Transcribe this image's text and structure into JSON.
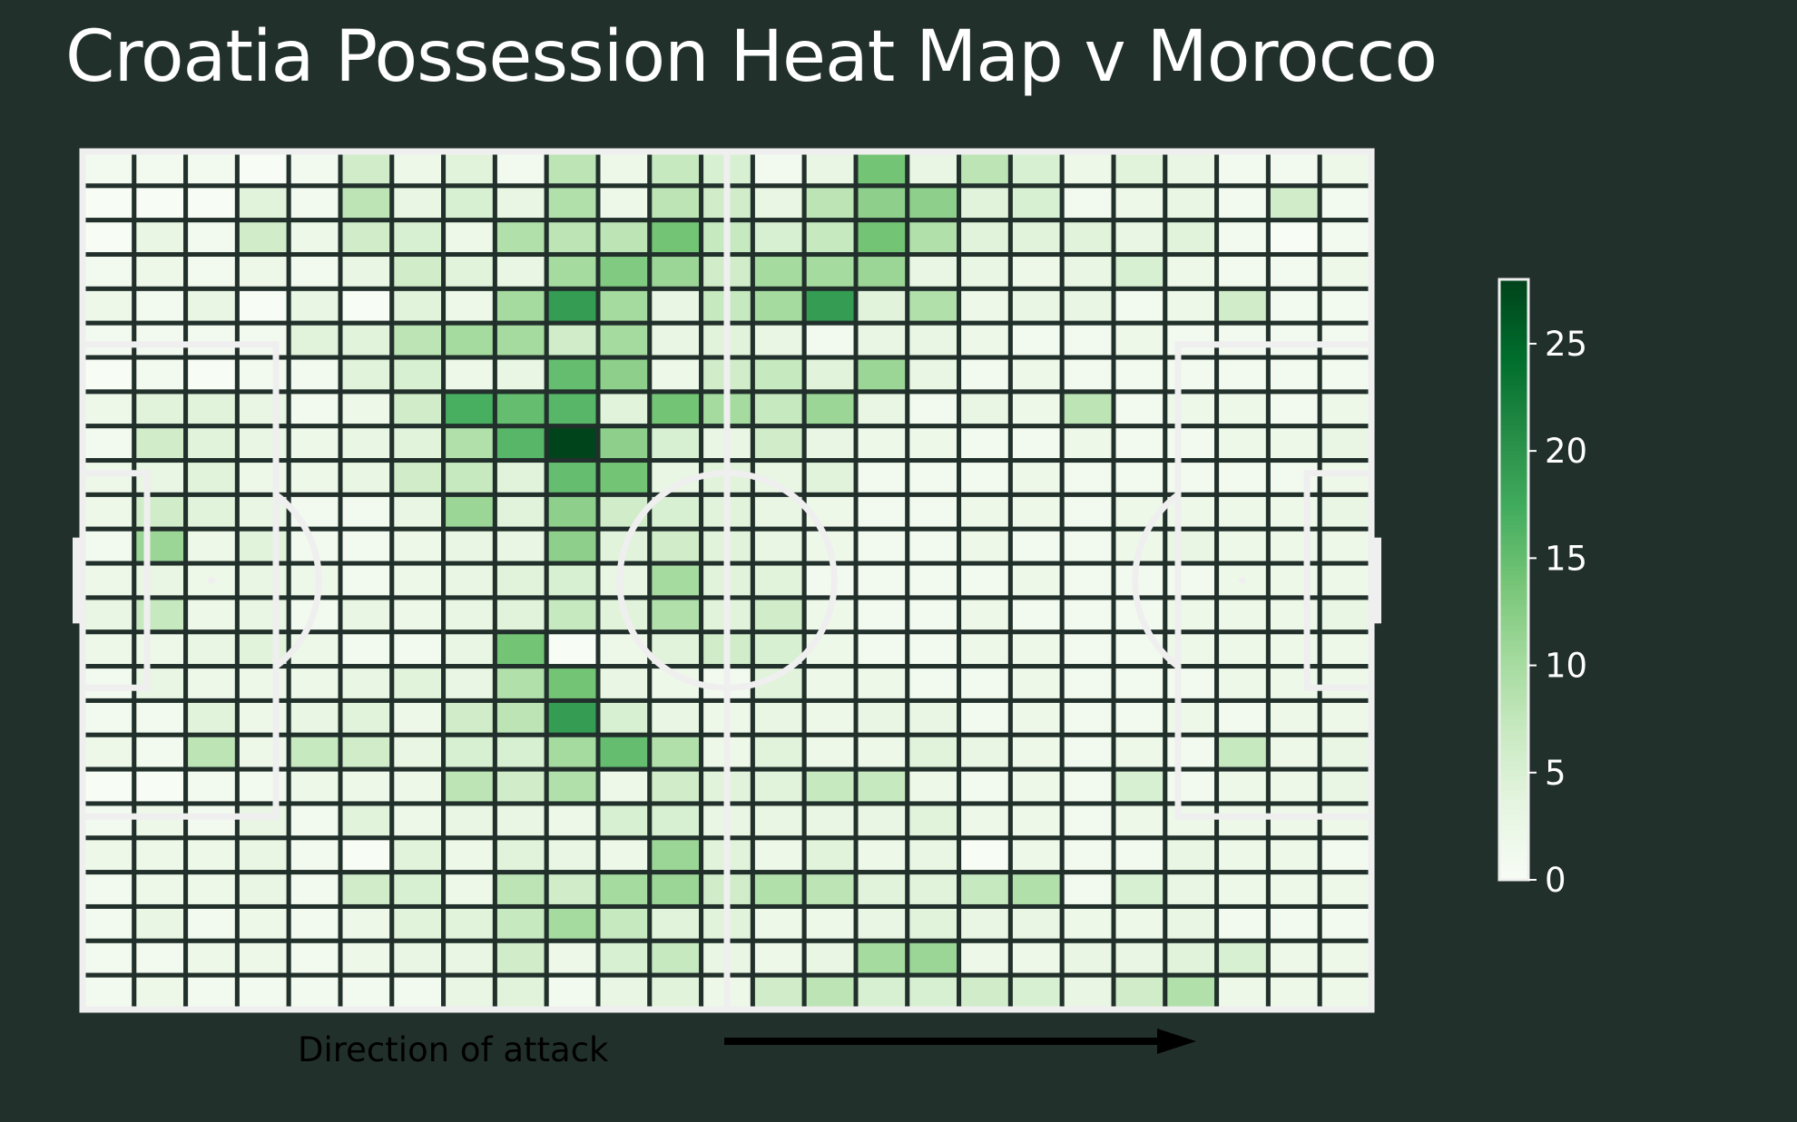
{
  "title": "Croatia Possession Heat Map v Morocco",
  "direction_label": "Direction of attack",
  "colors": {
    "background": "#22302c",
    "pitch_lines": "#efefef",
    "grid_lines": "#22302c",
    "arrow": "#000000",
    "colormap": [
      "#f7fcf5",
      "#e5f5e0",
      "#c7e9c0",
      "#a1d99b",
      "#74c476",
      "#41ab5d",
      "#238b45",
      "#006d2c",
      "#00441b"
    ]
  },
  "chart_data": {
    "type": "heatmap",
    "title": "Croatia Possession Heat Map v Morocco",
    "colorbar": {
      "min": 0,
      "max": 28,
      "ticks": [
        0,
        5,
        10,
        15,
        20,
        25
      ]
    },
    "grid": {
      "columns": 25,
      "rows": 25
    },
    "values": [
      [
        1,
        1,
        1,
        0,
        1,
        6,
        2,
        4,
        1,
        8,
        2,
        7,
        5,
        1,
        3,
        14,
        3,
        8,
        5,
        2,
        4,
        3,
        1,
        1,
        2
      ],
      [
        0,
        0,
        0,
        4,
        1,
        8,
        3,
        5,
        3,
        9,
        2,
        8,
        6,
        3,
        8,
        12,
        12,
        4,
        5,
        1,
        2,
        3,
        1,
        6,
        1
      ],
      [
        0,
        3,
        1,
        6,
        2,
        6,
        5,
        2,
        9,
        8,
        8,
        14,
        7,
        5,
        7,
        14,
        9,
        4,
        4,
        4,
        3,
        4,
        1,
        0,
        1
      ],
      [
        1,
        2,
        1,
        2,
        1,
        3,
        6,
        4,
        3,
        10,
        13,
        11,
        6,
        10,
        10,
        11,
        3,
        3,
        2,
        3,
        5,
        2,
        1,
        1,
        2
      ],
      [
        2,
        1,
        3,
        0,
        3,
        0,
        4,
        2,
        10,
        19,
        10,
        3,
        7,
        10,
        19,
        4,
        9,
        2,
        3,
        3,
        1,
        2,
        6,
        1,
        1
      ],
      [
        1,
        1,
        1,
        1,
        4,
        4,
        8,
        10,
        10,
        6,
        10,
        3,
        4,
        3,
        1,
        3,
        3,
        2,
        1,
        1,
        2,
        1,
        1,
        1,
        1
      ],
      [
        0,
        1,
        0,
        1,
        1,
        4,
        5,
        2,
        3,
        15,
        12,
        2,
        6,
        7,
        4,
        11,
        3,
        1,
        2,
        1,
        1,
        1,
        1,
        1,
        1
      ],
      [
        2,
        4,
        4,
        3,
        1,
        2,
        6,
        17,
        15,
        16,
        4,
        14,
        10,
        7,
        11,
        3,
        1,
        3,
        2,
        8,
        1,
        2,
        2,
        1,
        2
      ],
      [
        1,
        6,
        4,
        3,
        2,
        3,
        4,
        9,
        16,
        28,
        12,
        5,
        3,
        6,
        3,
        2,
        2,
        1,
        1,
        2,
        1,
        1,
        2,
        2,
        3
      ],
      [
        2,
        3,
        4,
        2,
        2,
        3,
        6,
        7,
        4,
        15,
        14,
        3,
        4,
        3,
        4,
        1,
        1,
        1,
        2,
        1,
        1,
        1,
        1,
        1,
        2
      ],
      [
        2,
        6,
        4,
        3,
        1,
        1,
        3,
        11,
        4,
        12,
        6,
        5,
        4,
        3,
        2,
        1,
        1,
        2,
        2,
        1,
        2,
        2,
        2,
        2,
        3
      ],
      [
        1,
        11,
        2,
        4,
        1,
        1,
        2,
        3,
        3,
        12,
        4,
        6,
        4,
        3,
        2,
        1,
        1,
        2,
        1,
        1,
        2,
        3,
        2,
        2,
        2
      ],
      [
        2,
        3,
        2,
        3,
        2,
        1,
        2,
        3,
        4,
        5,
        3,
        10,
        4,
        4,
        1,
        1,
        1,
        1,
        2,
        1,
        1,
        1,
        2,
        2,
        2
      ],
      [
        3,
        7,
        2,
        3,
        1,
        3,
        2,
        3,
        4,
        7,
        4,
        9,
        4,
        6,
        2,
        1,
        1,
        2,
        1,
        1,
        1,
        2,
        2,
        2,
        3
      ],
      [
        2,
        2,
        3,
        4,
        2,
        1,
        1,
        3,
        14,
        0,
        2,
        4,
        6,
        5,
        2,
        1,
        1,
        2,
        2,
        1,
        1,
        2,
        2,
        2,
        2
      ],
      [
        1,
        3,
        2,
        2,
        2,
        3,
        4,
        3,
        9,
        14,
        3,
        2,
        1,
        4,
        2,
        2,
        1,
        1,
        2,
        1,
        1,
        1,
        2,
        2,
        2
      ],
      [
        1,
        1,
        4,
        2,
        3,
        4,
        2,
        6,
        8,
        19,
        5,
        3,
        2,
        3,
        2,
        3,
        3,
        1,
        2,
        1,
        1,
        2,
        1,
        2,
        2
      ],
      [
        2,
        1,
        8,
        2,
        7,
        6,
        3,
        5,
        5,
        10,
        15,
        9,
        2,
        4,
        2,
        2,
        4,
        3,
        2,
        1,
        2,
        1,
        7,
        2,
        3
      ],
      [
        0,
        0,
        1,
        1,
        2,
        2,
        2,
        8,
        6,
        9,
        2,
        6,
        4,
        4,
        7,
        7,
        2,
        1,
        2,
        1,
        5,
        1,
        2,
        2,
        3
      ],
      [
        1,
        2,
        1,
        3,
        1,
        4,
        2,
        3,
        3,
        2,
        5,
        5,
        3,
        3,
        3,
        3,
        4,
        2,
        2,
        1,
        2,
        2,
        2,
        2,
        2
      ],
      [
        2,
        2,
        2,
        3,
        1,
        0,
        4,
        2,
        4,
        3,
        2,
        11,
        4,
        2,
        4,
        2,
        3,
        0,
        2,
        1,
        1,
        3,
        2,
        2,
        1
      ],
      [
        1,
        2,
        2,
        3,
        1,
        6,
        5,
        2,
        8,
        6,
        10,
        11,
        6,
        9,
        8,
        4,
        4,
        7,
        9,
        1,
        5,
        3,
        2,
        2,
        2
      ],
      [
        1,
        3,
        1,
        2,
        1,
        2,
        4,
        4,
        7,
        10,
        7,
        4,
        4,
        2,
        2,
        3,
        4,
        3,
        3,
        2,
        2,
        3,
        1,
        1,
        1
      ],
      [
        1,
        1,
        2,
        2,
        1,
        2,
        3,
        3,
        6,
        2,
        5,
        7,
        3,
        2,
        3,
        10,
        11,
        2,
        2,
        3,
        3,
        4,
        5,
        2,
        2
      ],
      [
        1,
        2,
        1,
        1,
        1,
        1,
        1,
        3,
        4,
        1,
        3,
        4,
        2,
        6,
        8,
        5,
        5,
        6,
        5,
        3,
        6,
        9,
        2,
        2,
        2
      ]
    ]
  }
}
